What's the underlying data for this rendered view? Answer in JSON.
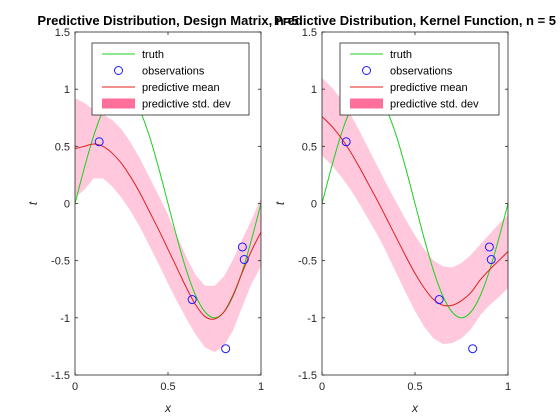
{
  "chart_data": [
    {
      "type": "line",
      "title": "Predictive Distribution, Design Matrix, n=5",
      "xlabel": "x",
      "ylabel": "t",
      "xlim": [
        0,
        1
      ],
      "ylim": [
        -1.5,
        1.5
      ],
      "xticks": [
        "0",
        "0.5",
        "1"
      ],
      "yticks": [
        "1.5",
        "1",
        "0.5",
        "0",
        "-0.5",
        "-1",
        "-1.5"
      ],
      "grid": false,
      "legend_position": "top-right",
      "legend": [
        "truth",
        "observations",
        "predictive mean",
        "predictive std. dev"
      ],
      "x": [
        0,
        0.05,
        0.1,
        0.15,
        0.2,
        0.25,
        0.3,
        0.35,
        0.4,
        0.45,
        0.5,
        0.55,
        0.6,
        0.65,
        0.7,
        0.75,
        0.8,
        0.85,
        0.9,
        0.95,
        1
      ],
      "truth": [
        0,
        0.31,
        0.59,
        0.81,
        0.95,
        1,
        0.95,
        0.81,
        0.59,
        0.31,
        0,
        -0.31,
        -0.59,
        -0.81,
        -0.95,
        -1,
        -0.95,
        -0.81,
        -0.59,
        -0.31,
        0
      ],
      "predictive_mean": [
        0.48,
        0.5,
        0.52,
        0.5,
        0.44,
        0.35,
        0.23,
        0.09,
        -0.07,
        -0.23,
        -0.4,
        -0.57,
        -0.74,
        -0.89,
        -0.99,
        -1.01,
        -0.95,
        -0.8,
        -0.6,
        -0.41,
        -0.25
      ],
      "std_upper": [
        0.92,
        0.88,
        0.82,
        0.78,
        0.73,
        0.65,
        0.53,
        0.39,
        0.23,
        0.07,
        -0.1,
        -0.29,
        -0.47,
        -0.63,
        -0.72,
        -0.72,
        -0.64,
        -0.49,
        -0.31,
        -0.14,
        0.05
      ],
      "std_lower": [
        0.05,
        0.12,
        0.22,
        0.22,
        0.15,
        0.05,
        -0.07,
        -0.21,
        -0.37,
        -0.53,
        -0.7,
        -0.86,
        -1.01,
        -1.15,
        -1.26,
        -1.3,
        -1.25,
        -1.11,
        -0.9,
        -0.7,
        -0.55
      ],
      "observations": [
        {
          "x": 0.13,
          "y": 0.54
        },
        {
          "x": 0.63,
          "y": -0.84
        },
        {
          "x": 0.81,
          "y": -1.27
        },
        {
          "x": 0.9,
          "y": -0.38
        },
        {
          "x": 0.91,
          "y": -0.49
        }
      ]
    },
    {
      "type": "line",
      "title": "Predictive Distribution, Kernel Function, n = 5",
      "xlabel": "x",
      "ylabel": "t",
      "xlim": [
        0,
        1
      ],
      "ylim": [
        -1.5,
        1.5
      ],
      "xticks": [
        "0",
        "0.5",
        "1"
      ],
      "yticks": [
        "1.5",
        "1",
        "0.5",
        "0",
        "-0.5",
        "-1",
        "-1.5"
      ],
      "grid": false,
      "legend_position": "top-right",
      "legend": [
        "truth",
        "observations",
        "predictive mean",
        "predictive std. dev"
      ],
      "x": [
        0,
        0.05,
        0.1,
        0.15,
        0.2,
        0.25,
        0.3,
        0.35,
        0.4,
        0.45,
        0.5,
        0.55,
        0.6,
        0.65,
        0.7,
        0.75,
        0.8,
        0.85,
        0.9,
        0.95,
        1
      ],
      "truth": [
        0,
        0.31,
        0.59,
        0.81,
        0.95,
        1,
        0.95,
        0.81,
        0.59,
        0.31,
        0,
        -0.31,
        -0.59,
        -0.81,
        -0.95,
        -1,
        -0.95,
        -0.81,
        -0.59,
        -0.31,
        0
      ],
      "predictive_mean": [
        0.76,
        0.68,
        0.58,
        0.46,
        0.32,
        0.17,
        0.02,
        -0.14,
        -0.3,
        -0.46,
        -0.61,
        -0.74,
        -0.84,
        -0.89,
        -0.89,
        -0.85,
        -0.78,
        -0.67,
        -0.58,
        -0.5,
        -0.42
      ],
      "std_upper": [
        1.1,
        1.02,
        0.92,
        0.79,
        0.64,
        0.48,
        0.32,
        0.16,
        0.01,
        -0.14,
        -0.28,
        -0.4,
        -0.5,
        -0.55,
        -0.56,
        -0.52,
        -0.45,
        -0.36,
        -0.27,
        -0.18,
        -0.1
      ],
      "std_lower": [
        0.42,
        0.34,
        0.24,
        0.13,
        0.0,
        -0.14,
        -0.28,
        -0.44,
        -0.61,
        -0.78,
        -0.94,
        -1.08,
        -1.18,
        -1.23,
        -1.22,
        -1.18,
        -1.1,
        -0.98,
        -0.89,
        -0.82,
        -0.74
      ],
      "observations": [
        {
          "x": 0.13,
          "y": 0.54
        },
        {
          "x": 0.63,
          "y": -0.84
        },
        {
          "x": 0.81,
          "y": -1.27
        },
        {
          "x": 0.9,
          "y": -0.38
        },
        {
          "x": 0.91,
          "y": -0.49
        }
      ]
    }
  ],
  "colors": {
    "truth": "#1fd01f",
    "observations": "#1a1aff",
    "predictive_mean": "#e02020",
    "std_band": "#ffc8dc",
    "legend_band": "#ff6f9c"
  }
}
